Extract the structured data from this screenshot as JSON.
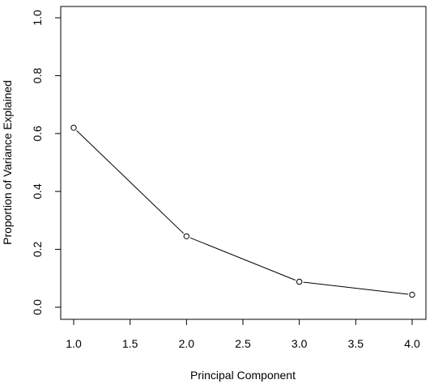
{
  "chart_data": {
    "type": "line",
    "title": "",
    "xlabel": "Principal Component",
    "ylabel": "Proportion of Variance Explained",
    "x": [
      1.0,
      2.0,
      3.0,
      4.0
    ],
    "y": [
      0.62,
      0.245,
      0.088,
      0.043
    ],
    "xlim": [
      1.0,
      4.0
    ],
    "ylim": [
      0.0,
      1.0
    ],
    "x_ticks": [
      "1.0",
      "1.5",
      "2.0",
      "2.5",
      "3.0",
      "3.5",
      "4.0"
    ],
    "y_ticks": [
      "0.0",
      "0.2",
      "0.4",
      "0.6",
      "0.8",
      "1.0"
    ],
    "grid": false,
    "marker": "open-circle",
    "line_color": "#000000"
  }
}
